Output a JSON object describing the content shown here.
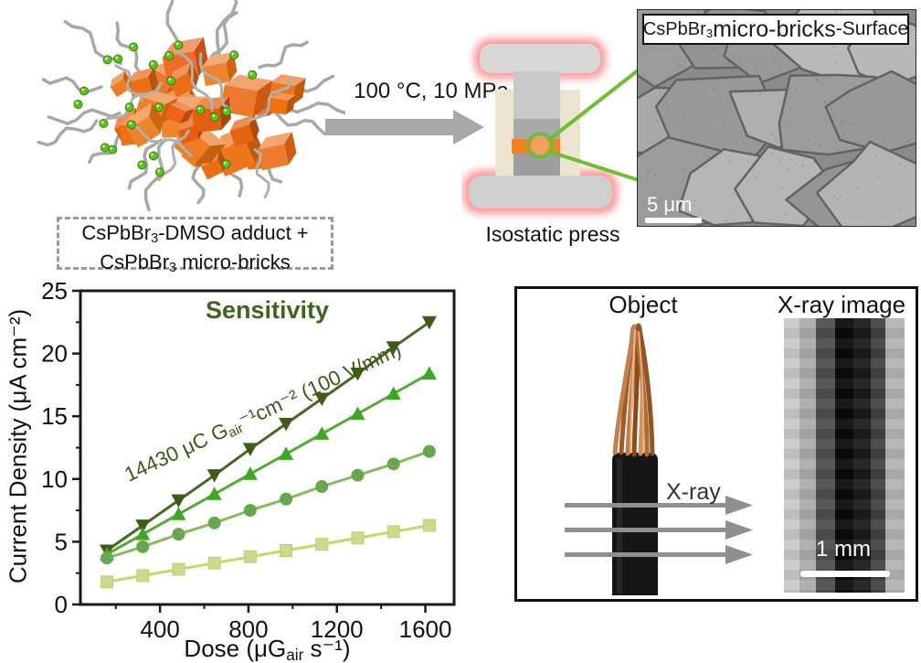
{
  "figure": {
    "cluster_caption": {
      "l1_pre": "CsPbBr",
      "l1_sub": "3",
      "l1_post": "-DMSO adduct +",
      "l2_pre": "CsPbBr",
      "l2_sub": "3",
      "l2_post": " micro-bricks"
    },
    "process": {
      "conditions": "100 °C, 10 MPa",
      "press_label": "Isostatic press"
    },
    "sem": {
      "title_pre": "CsPbBr",
      "title_sub": "3",
      "title_main": " micro-bricks",
      "title_suffix": "-Surface",
      "scale_bar": "5 μm"
    },
    "xray": {
      "object_label": "Object",
      "image_label": "X-ray image",
      "beam_label": "X-ray",
      "scale_bar": "1 mm",
      "strip_shades": [
        "#c9c9c9",
        "#ababab",
        "#4e4e4e",
        "#0b0b0b",
        "#1c1c1c",
        "#424242",
        "#b3b3b3"
      ],
      "strip_widths": [
        17,
        18,
        21,
        20,
        19,
        16,
        21
      ]
    },
    "colors": {
      "brick_orange": "#e97723",
      "ligand_gray": "#a8a8a8",
      "dot_green": "#5fc31f",
      "callout_green": "#6cc02f",
      "glow_red": "#ff8a8a",
      "process_arrow_gray": "#a8a8a8",
      "xray_arrow_gray": "#8f8f8f",
      "sample_orange": "#f08228"
    }
  },
  "chart_data": {
    "type": "line",
    "title": "Sensitivity",
    "annotation_pre": "14430 μC  G",
    "annotation_sub": "air",
    "annotation_post": "⁻¹cm⁻² (100 V/mm)",
    "xlabel_pre": "Dose  (μG",
    "xlabel_sub": "air",
    "xlabel_post": " s⁻¹)",
    "ylabel": "Current Density (μA cm⁻²)",
    "xlim": [
      40,
      1730
    ],
    "ylim": [
      0,
      25
    ],
    "xticks": [
      400,
      800,
      1200,
      1600
    ],
    "xticks_minor": [
      200,
      600,
      1000,
      1400
    ],
    "yticks": [
      0,
      5,
      10,
      15,
      20,
      25
    ],
    "yticks_minor": [
      2.5,
      7.5,
      12.5,
      17.5,
      22.5
    ],
    "grid": false,
    "legend_position": "none",
    "x": [
      160,
      322,
      484,
      646,
      808,
      970,
      1132,
      1294,
      1456,
      1618
    ],
    "series": [
      {
        "name": "triangle-down-100V-mm",
        "marker": "triangle-down",
        "color": "#3d5c17",
        "line_color": "#4d6525",
        "values": [
          4.3,
          6.3,
          8.3,
          10.3,
          12.4,
          14.4,
          16.4,
          18.4,
          20.5,
          22.5
        ]
      },
      {
        "name": "triangle-up",
        "marker": "triangle-up",
        "color": "#3ea824",
        "line_color": "#54ab33",
        "values": [
          4.0,
          5.6,
          7.2,
          8.8,
          10.4,
          12.0,
          13.6,
          15.2,
          16.8,
          18.4
        ]
      },
      {
        "name": "circle",
        "marker": "circle",
        "color": "#68a750",
        "line_color": "#86bb60",
        "values": [
          3.7,
          4.6,
          5.6,
          6.5,
          7.5,
          8.4,
          9.4,
          10.3,
          11.2,
          12.2
        ]
      },
      {
        "name": "square",
        "marker": "square",
        "color": "#cdd98f",
        "line_color": "#c9d767",
        "values": [
          1.8,
          2.3,
          2.8,
          3.3,
          3.8,
          4.3,
          4.8,
          5.3,
          5.8,
          6.3
        ]
      }
    ]
  }
}
